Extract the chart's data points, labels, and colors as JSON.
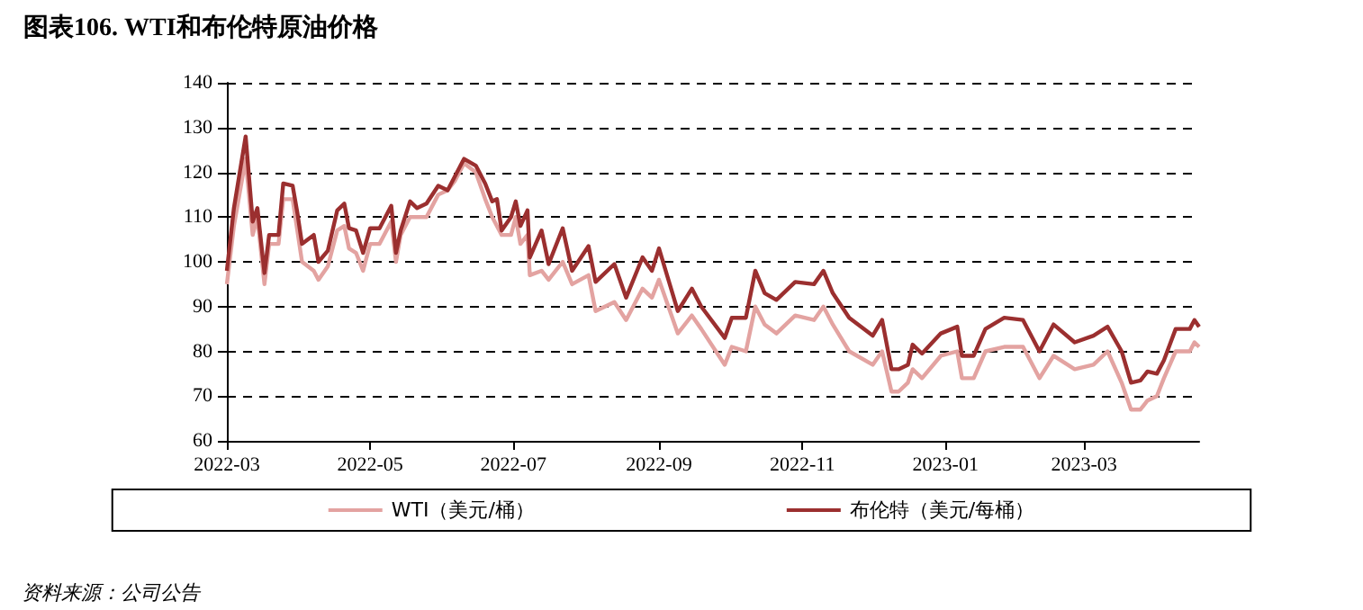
{
  "chart_data": {
    "type": "line",
    "title": "图表106. WTI和布伦特原油价格",
    "annotations": [
      "资料来源：公司公告"
    ],
    "x": [
      "2022-03-01",
      "2022-03-04",
      "2022-03-09",
      "2022-03-12",
      "2022-03-14",
      "2022-03-17",
      "2022-03-19",
      "2022-03-23",
      "2022-03-25",
      "2022-03-29",
      "2022-03-31",
      "2022-04-02",
      "2022-04-07",
      "2022-04-09",
      "2022-04-13",
      "2022-04-17",
      "2022-04-20",
      "2022-04-22",
      "2022-04-25",
      "2022-04-28",
      "2022-05-01",
      "2022-05-05",
      "2022-05-10",
      "2022-05-12",
      "2022-05-14",
      "2022-05-18",
      "2022-05-21",
      "2022-05-25",
      "2022-05-30",
      "2022-06-03",
      "2022-06-06",
      "2022-06-10",
      "2022-06-15",
      "2022-06-19",
      "2022-06-22",
      "2022-06-24",
      "2022-06-26",
      "2022-06-30",
      "2022-07-02",
      "2022-07-04",
      "2022-07-07",
      "2022-07-08",
      "2022-07-13",
      "2022-07-16",
      "2022-07-22",
      "2022-07-26",
      "2022-08-02",
      "2022-08-05",
      "2022-08-13",
      "2022-08-18",
      "2022-08-25",
      "2022-08-29",
      "2022-09-01",
      "2022-09-09",
      "2022-09-15",
      "2022-09-19",
      "2022-09-29",
      "2022-10-02",
      "2022-10-08",
      "2022-10-12",
      "2022-10-16",
      "2022-10-21",
      "2022-10-29",
      "2022-11-06",
      "2022-11-10",
      "2022-11-14",
      "2022-11-21",
      "2022-12-01",
      "2022-12-05",
      "2022-12-09",
      "2022-12-12",
      "2022-12-16",
      "2022-12-18",
      "2022-12-22",
      "2022-12-30",
      "2023-01-06",
      "2023-01-08",
      "2023-01-13",
      "2023-01-18",
      "2023-01-26",
      "2023-02-03",
      "2023-02-10",
      "2023-02-16",
      "2023-02-25",
      "2023-03-05",
      "2023-03-11",
      "2023-03-17",
      "2023-03-21",
      "2023-03-25",
      "2023-03-28",
      "2023-04-01",
      "2023-04-04",
      "2023-04-09",
      "2023-04-15",
      "2023-04-17",
      "2023-04-19"
    ],
    "series": [
      {
        "name": "WTI（美元/桶）",
        "color": "#e3a3a1",
        "values": [
          95,
          108,
          123,
          106,
          110,
          95,
          104,
          104,
          114,
          114,
          107,
          100,
          98,
          96,
          99,
          107,
          108,
          103,
          102,
          98,
          104,
          104,
          109,
          100,
          106,
          110,
          110,
          110,
          115,
          116,
          118,
          122,
          120,
          114,
          110,
          108,
          106,
          106,
          110,
          104,
          106,
          97,
          98,
          96,
          100,
          95,
          97,
          89,
          91,
          87,
          94,
          92,
          96,
          84,
          88,
          85,
          77,
          81,
          80,
          90,
          86,
          84,
          88,
          87,
          90,
          86,
          80,
          77,
          80,
          71,
          71,
          73,
          76,
          74,
          79,
          80,
          74,
          74,
          80,
          81,
          81,
          74,
          79,
          76,
          77,
          80,
          73,
          67,
          67,
          69,
          70,
          74,
          80,
          80,
          82,
          81
        ]
      },
      {
        "name": "布伦特（美元/每桶）",
        "color": "#9b2f2f",
        "values": [
          98,
          112,
          128,
          109,
          112,
          97.5,
          106,
          106,
          117.5,
          117,
          111,
          104,
          106,
          100,
          102.5,
          111.5,
          113,
          107.5,
          107,
          102,
          107.5,
          107.5,
          112.5,
          102,
          107,
          113.5,
          112,
          113,
          117,
          116,
          119,
          123,
          121.5,
          117.5,
          113.5,
          114,
          107,
          110,
          113.5,
          108,
          111.5,
          101,
          107,
          99.5,
          107.5,
          98,
          103.5,
          95.5,
          99.5,
          92,
          101,
          98,
          103,
          89,
          94,
          90,
          83,
          87.5,
          87.5,
          98,
          93,
          91.5,
          95.5,
          95,
          98,
          93,
          87.5,
          83.5,
          87,
          76,
          76,
          77,
          81.5,
          79.5,
          84,
          85.5,
          79,
          79,
          85,
          87.5,
          87,
          80,
          86,
          82,
          83.5,
          85.5,
          80,
          73,
          73.5,
          75.5,
          75,
          78,
          85,
          85,
          87,
          85.5
        ]
      }
    ],
    "xlim": [
      "2022-03-01",
      "2023-04-19"
    ],
    "xticks": [
      "2022-03",
      "2022-05",
      "2022-07",
      "2022-09",
      "2022-11",
      "2023-01",
      "2023-03"
    ],
    "ylim": [
      60,
      140
    ],
    "yticks": [
      60,
      70,
      80,
      90,
      100,
      110,
      120,
      130,
      140
    ],
    "grid": "y",
    "legend": "bottom",
    "marker": "none",
    "line_style": "solid"
  }
}
